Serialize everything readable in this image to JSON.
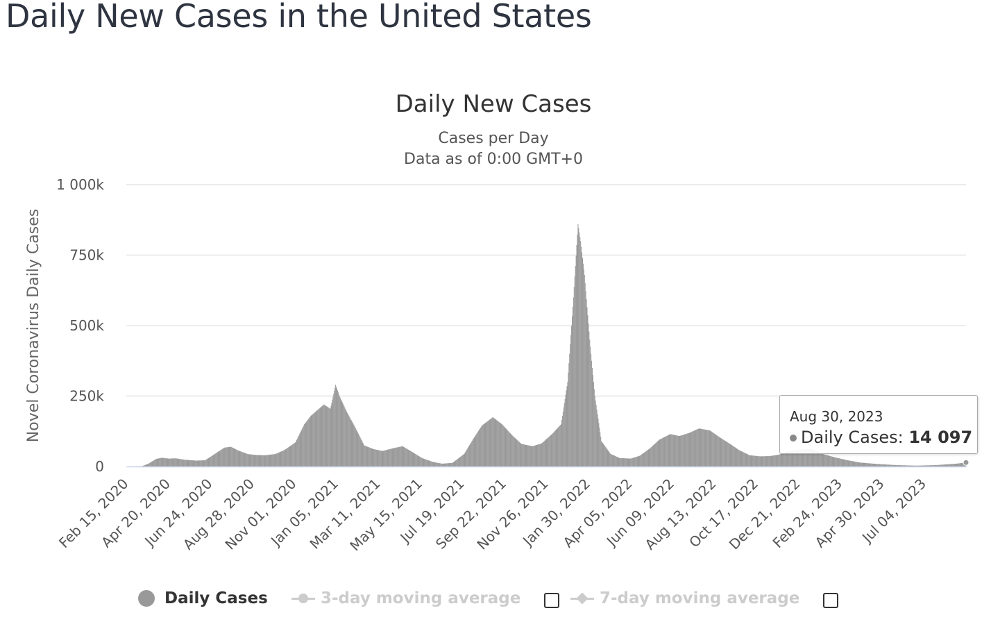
{
  "page": {
    "title": "Daily New Cases in the United States"
  },
  "tooltip": {
    "date": "Aug 30, 2023",
    "label": "Daily Cases:",
    "value": "14 097"
  },
  "legend": {
    "items": [
      {
        "label": "Daily Cases",
        "state": "on"
      },
      {
        "label": "3-day moving average",
        "state": "off"
      },
      {
        "label": "7-day moving average",
        "state": "off"
      }
    ]
  },
  "colors": {
    "bars": "#999999",
    "grid": "#e6e6e6",
    "axis": "#ccd6eb",
    "legend_disabled": "#cccccc"
  },
  "chart_data": {
    "type": "bar",
    "title": "Daily New Cases",
    "subtitle": "Cases per Day",
    "subtitle2": "Data as of 0:00 GMT+0",
    "ylabel": "Novel Coronavirus Daily Cases",
    "xlabel": "",
    "ylim": [
      0,
      1000000
    ],
    "yticks": [
      0,
      250000,
      500000,
      750000,
      1000000
    ],
    "ytick_labels": [
      "0",
      "250k",
      "500k",
      "750k",
      "1 000k"
    ],
    "x_range": [
      "2020-02-15",
      "2023-08-30"
    ],
    "xtick_labels": [
      "Feb 15, 2020",
      "Apr 20, 2020",
      "Jun 24, 2020",
      "Aug 28, 2020",
      "Nov 01, 2020",
      "Jan 05, 2021",
      "Mar 11, 2021",
      "May 15, 2021",
      "Jul 19, 2021",
      "Sep 22, 2021",
      "Nov 26, 2021",
      "Jan 30, 2022",
      "Apr 05, 2022",
      "Jun 09, 2022",
      "Aug 13, 2022",
      "Oct 17, 2022",
      "Dec 21, 2022",
      "Feb 24, 2023",
      "Apr 30, 2023",
      "Jul 04, 2023"
    ],
    "grid": true,
    "legend_position": "bottom",
    "series": [
      {
        "name": "Daily Cases",
        "points": [
          [
            "2020-02-15",
            0
          ],
          [
            "2020-03-10",
            1000
          ],
          [
            "2020-03-20",
            10000
          ],
          [
            "2020-04-01",
            27000
          ],
          [
            "2020-04-10",
            31000
          ],
          [
            "2020-04-20",
            28000
          ],
          [
            "2020-05-01",
            29000
          ],
          [
            "2020-05-15",
            24000
          ],
          [
            "2020-06-01",
            21000
          ],
          [
            "2020-06-15",
            22000
          ],
          [
            "2020-06-24",
            35000
          ],
          [
            "2020-07-05",
            52000
          ],
          [
            "2020-07-15",
            67000
          ],
          [
            "2020-07-25",
            70000
          ],
          [
            "2020-08-05",
            57000
          ],
          [
            "2020-08-20",
            44000
          ],
          [
            "2020-09-01",
            41000
          ],
          [
            "2020-09-15",
            40000
          ],
          [
            "2020-10-01",
            44000
          ],
          [
            "2020-10-15",
            58000
          ],
          [
            "2020-11-01",
            85000
          ],
          [
            "2020-11-15",
            150000
          ],
          [
            "2020-11-25",
            180000
          ],
          [
            "2020-12-05",
            200000
          ],
          [
            "2020-12-15",
            220000
          ],
          [
            "2020-12-25",
            205000
          ],
          [
            "2021-01-02",
            290000
          ],
          [
            "2021-01-08",
            250000
          ],
          [
            "2021-01-20",
            190000
          ],
          [
            "2021-02-01",
            140000
          ],
          [
            "2021-02-15",
            75000
          ],
          [
            "2021-03-01",
            62000
          ],
          [
            "2021-03-15",
            55000
          ],
          [
            "2021-04-01",
            65000
          ],
          [
            "2021-04-15",
            72000
          ],
          [
            "2021-05-01",
            50000
          ],
          [
            "2021-05-15",
            30000
          ],
          [
            "2021-06-01",
            16000
          ],
          [
            "2021-06-15",
            10000
          ],
          [
            "2021-07-01",
            13000
          ],
          [
            "2021-07-19",
            45000
          ],
          [
            "2021-08-01",
            95000
          ],
          [
            "2021-08-15",
            145000
          ],
          [
            "2021-09-01",
            175000
          ],
          [
            "2021-09-15",
            150000
          ],
          [
            "2021-10-01",
            110000
          ],
          [
            "2021-10-15",
            80000
          ],
          [
            "2021-11-01",
            72000
          ],
          [
            "2021-11-15",
            82000
          ],
          [
            "2021-12-01",
            115000
          ],
          [
            "2021-12-15",
            150000
          ],
          [
            "2021-12-25",
            300000
          ],
          [
            "2022-01-03",
            600000
          ],
          [
            "2022-01-10",
            860000
          ],
          [
            "2022-01-14",
            800000
          ],
          [
            "2022-01-20",
            680000
          ],
          [
            "2022-01-28",
            450000
          ],
          [
            "2022-02-05",
            250000
          ],
          [
            "2022-02-15",
            90000
          ],
          [
            "2022-03-01",
            45000
          ],
          [
            "2022-03-15",
            30000
          ],
          [
            "2022-04-01",
            28000
          ],
          [
            "2022-04-15",
            38000
          ],
          [
            "2022-05-01",
            65000
          ],
          [
            "2022-05-15",
            95000
          ],
          [
            "2022-06-01",
            115000
          ],
          [
            "2022-06-15",
            108000
          ],
          [
            "2022-07-01",
            120000
          ],
          [
            "2022-07-15",
            135000
          ],
          [
            "2022-08-01",
            128000
          ],
          [
            "2022-08-15",
            105000
          ],
          [
            "2022-09-01",
            80000
          ],
          [
            "2022-09-15",
            58000
          ],
          [
            "2022-10-01",
            40000
          ],
          [
            "2022-10-17",
            36000
          ],
          [
            "2022-11-01",
            37000
          ],
          [
            "2022-11-15",
            42000
          ],
          [
            "2022-12-01",
            55000
          ],
          [
            "2022-12-15",
            60000
          ],
          [
            "2023-01-05",
            62000
          ],
          [
            "2023-01-20",
            45000
          ],
          [
            "2023-02-10",
            32000
          ],
          [
            "2023-03-01",
            22000
          ],
          [
            "2023-03-20",
            14000
          ],
          [
            "2023-04-15",
            9000
          ],
          [
            "2023-05-15",
            5000
          ],
          [
            "2023-06-15",
            3000
          ],
          [
            "2023-07-15",
            5000
          ],
          [
            "2023-08-15",
            10000
          ],
          [
            "2023-08-30",
            14097
          ]
        ]
      }
    ]
  }
}
